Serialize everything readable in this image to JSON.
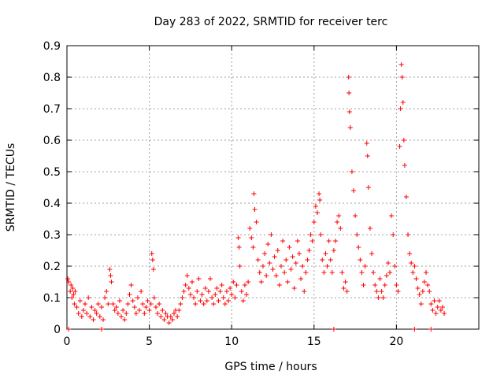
{
  "chart_data": {
    "type": "scatter",
    "title": "Day 283 of 2022, SRMTID for receiver terc",
    "xlabel": "GPS time / hours",
    "ylabel": "SRMTID / TECUs",
    "xlim": [
      0,
      25
    ],
    "ylim": [
      0,
      0.9
    ],
    "xticks": [
      0,
      5,
      10,
      15,
      20
    ],
    "yticks": [
      0,
      0.1,
      0.2,
      0.3,
      0.4,
      0.5,
      0.6,
      0.7,
      0.8,
      0.9
    ],
    "xtick_labels": [
      "0",
      "5",
      "10",
      "15",
      "20"
    ],
    "ytick_labels": [
      "0",
      "0.1",
      "0.2",
      "0.3",
      "0.4",
      "0.5",
      "0.6",
      "0.7",
      "0.8",
      "0.9"
    ],
    "grid": true,
    "marker": "+",
    "color": "#ff0000",
    "series": [
      {
        "name": "SRMTID",
        "points": [
          [
            0.05,
            0.16
          ],
          [
            0.1,
            0.15
          ],
          [
            0.2,
            0.12
          ],
          [
            0.25,
            0.14
          ],
          [
            0.3,
            0.1
          ],
          [
            0.35,
            0.13
          ],
          [
            0.4,
            0.11
          ],
          [
            0.45,
            0.08
          ],
          [
            0.5,
            0.12
          ],
          [
            0.6,
            0.07
          ],
          [
            0.7,
            0.05
          ],
          [
            0.8,
            0.09
          ],
          [
            0.9,
            0.04
          ],
          [
            1.0,
            0.06
          ],
          [
            1.1,
            0.08
          ],
          [
            1.2,
            0.05
          ],
          [
            1.3,
            0.1
          ],
          [
            1.4,
            0.04
          ],
          [
            1.5,
            0.07
          ],
          [
            1.6,
            0.03
          ],
          [
            1.7,
            0.06
          ],
          [
            1.8,
            0.05
          ],
          [
            1.9,
            0.08
          ],
          [
            2.0,
            0.04
          ],
          [
            2.1,
            0.07
          ],
          [
            2.2,
            0.03
          ],
          [
            2.3,
            0.1
          ],
          [
            2.4,
            0.12
          ],
          [
            2.5,
            0.08
          ],
          [
            2.6,
            0.19
          ],
          [
            2.65,
            0.17
          ],
          [
            2.7,
            0.15
          ],
          [
            2.8,
            0.08
          ],
          [
            2.9,
            0.06
          ],
          [
            3.0,
            0.07
          ],
          [
            3.1,
            0.05
          ],
          [
            3.2,
            0.09
          ],
          [
            3.3,
            0.04
          ],
          [
            3.4,
            0.06
          ],
          [
            3.5,
            0.03
          ],
          [
            3.6,
            0.05
          ],
          [
            3.7,
            0.08
          ],
          [
            3.8,
            0.11
          ],
          [
            3.9,
            0.14
          ],
          [
            4.0,
            0.09
          ],
          [
            4.1,
            0.07
          ],
          [
            4.2,
            0.05
          ],
          [
            4.3,
            0.1
          ],
          [
            4.4,
            0.06
          ],
          [
            4.5,
            0.12
          ],
          [
            4.6,
            0.08
          ],
          [
            4.7,
            0.05
          ],
          [
            4.8,
            0.07
          ],
          [
            4.9,
            0.09
          ],
          [
            5.0,
            0.06
          ],
          [
            5.1,
            0.08
          ],
          [
            5.15,
            0.24
          ],
          [
            5.2,
            0.22
          ],
          [
            5.25,
            0.19
          ],
          [
            5.3,
            0.1
          ],
          [
            5.4,
            0.07
          ],
          [
            5.5,
            0.05
          ],
          [
            5.6,
            0.08
          ],
          [
            5.7,
            0.04
          ],
          [
            5.8,
            0.06
          ],
          [
            5.9,
            0.03
          ],
          [
            6.0,
            0.05
          ],
          [
            6.1,
            0.04
          ],
          [
            6.2,
            0.02
          ],
          [
            6.3,
            0.04
          ],
          [
            6.4,
            0.03
          ],
          [
            6.5,
            0.05
          ],
          [
            6.6,
            0.06
          ],
          [
            6.7,
            0.04
          ],
          [
            6.8,
            0.06
          ],
          [
            6.9,
            0.08
          ],
          [
            7.0,
            0.1
          ],
          [
            7.1,
            0.12
          ],
          [
            7.2,
            0.14
          ],
          [
            7.3,
            0.17
          ],
          [
            7.4,
            0.13
          ],
          [
            7.5,
            0.11
          ],
          [
            7.6,
            0.15
          ],
          [
            7.7,
            0.1
          ],
          [
            7.8,
            0.08
          ],
          [
            7.9,
            0.12
          ],
          [
            8.0,
            0.16
          ],
          [
            8.1,
            0.09
          ],
          [
            8.2,
            0.11
          ],
          [
            8.3,
            0.08
          ],
          [
            8.4,
            0.13
          ],
          [
            8.5,
            0.09
          ],
          [
            8.6,
            0.12
          ],
          [
            8.7,
            0.16
          ],
          [
            8.8,
            0.1
          ],
          [
            8.9,
            0.08
          ],
          [
            9.0,
            0.11
          ],
          [
            9.1,
            0.13
          ],
          [
            9.2,
            0.09
          ],
          [
            9.3,
            0.12
          ],
          [
            9.4,
            0.14
          ],
          [
            9.5,
            0.1
          ],
          [
            9.6,
            0.08
          ],
          [
            9.7,
            0.12
          ],
          [
            9.8,
            0.09
          ],
          [
            9.9,
            0.13
          ],
          [
            10.0,
            0.11
          ],
          [
            10.1,
            0.15
          ],
          [
            10.2,
            0.1
          ],
          [
            10.3,
            0.14
          ],
          [
            10.4,
            0.29
          ],
          [
            10.45,
            0.26
          ],
          [
            10.5,
            0.2
          ],
          [
            10.6,
            0.12
          ],
          [
            10.7,
            0.09
          ],
          [
            10.8,
            0.14
          ],
          [
            10.9,
            0.11
          ],
          [
            11.0,
            0.15
          ],
          [
            11.1,
            0.32
          ],
          [
            11.2,
            0.29
          ],
          [
            11.3,
            0.26
          ],
          [
            11.35,
            0.43
          ],
          [
            11.4,
            0.38
          ],
          [
            11.5,
            0.34
          ],
          [
            11.6,
            0.22
          ],
          [
            11.7,
            0.18
          ],
          [
            11.8,
            0.15
          ],
          [
            11.9,
            0.2
          ],
          [
            12.0,
            0.24
          ],
          [
            12.1,
            0.17
          ],
          [
            12.2,
            0.27
          ],
          [
            12.3,
            0.21
          ],
          [
            12.4,
            0.3
          ],
          [
            12.5,
            0.19
          ],
          [
            12.6,
            0.23
          ],
          [
            12.7,
            0.17
          ],
          [
            12.8,
            0.25
          ],
          [
            12.9,
            0.14
          ],
          [
            13.0,
            0.2
          ],
          [
            13.1,
            0.28
          ],
          [
            13.2,
            0.18
          ],
          [
            13.3,
            0.22
          ],
          [
            13.4,
            0.15
          ],
          [
            13.5,
            0.26
          ],
          [
            13.6,
            0.19
          ],
          [
            13.7,
            0.23
          ],
          [
            13.8,
            0.13
          ],
          [
            13.9,
            0.21
          ],
          [
            14.0,
            0.28
          ],
          [
            14.1,
            0.24
          ],
          [
            14.2,
            0.16
          ],
          [
            14.3,
            0.2
          ],
          [
            14.4,
            0.12
          ],
          [
            14.5,
            0.18
          ],
          [
            14.6,
            0.22
          ],
          [
            14.7,
            0.25
          ],
          [
            14.8,
            0.3
          ],
          [
            14.9,
            0.28
          ],
          [
            15.0,
            0.34
          ],
          [
            15.1,
            0.39
          ],
          [
            15.2,
            0.37
          ],
          [
            15.3,
            0.43
          ],
          [
            15.35,
            0.41
          ],
          [
            15.4,
            0.3
          ],
          [
            15.5,
            0.22
          ],
          [
            15.6,
            0.18
          ],
          [
            15.7,
            0.24
          ],
          [
            15.8,
            0.2
          ],
          [
            15.9,
            0.28
          ],
          [
            16.0,
            0.22
          ],
          [
            16.1,
            0.18
          ],
          [
            16.2,
            0.25
          ],
          [
            16.3,
            0.28
          ],
          [
            16.4,
            0.34
          ],
          [
            16.5,
            0.36
          ],
          [
            16.6,
            0.32
          ],
          [
            16.7,
            0.18
          ],
          [
            16.8,
            0.13
          ],
          [
            16.9,
            0.15
          ],
          [
            17.0,
            0.12
          ],
          [
            17.1,
            0.8
          ],
          [
            17.12,
            0.75
          ],
          [
            17.15,
            0.69
          ],
          [
            17.2,
            0.64
          ],
          [
            17.3,
            0.5
          ],
          [
            17.4,
            0.44
          ],
          [
            17.5,
            0.36
          ],
          [
            17.6,
            0.3
          ],
          [
            17.7,
            0.26
          ],
          [
            17.8,
            0.22
          ],
          [
            17.9,
            0.18
          ],
          [
            18.0,
            0.14
          ],
          [
            18.1,
            0.2
          ],
          [
            18.2,
            0.59
          ],
          [
            18.25,
            0.55
          ],
          [
            18.3,
            0.45
          ],
          [
            18.4,
            0.32
          ],
          [
            18.5,
            0.24
          ],
          [
            18.6,
            0.18
          ],
          [
            18.7,
            0.14
          ],
          [
            18.8,
            0.12
          ],
          [
            18.9,
            0.1
          ],
          [
            19.0,
            0.16
          ],
          [
            19.1,
            0.12
          ],
          [
            19.2,
            0.1
          ],
          [
            19.3,
            0.14
          ],
          [
            19.4,
            0.17
          ],
          [
            19.5,
            0.21
          ],
          [
            19.6,
            0.18
          ],
          [
            19.7,
            0.36
          ],
          [
            19.8,
            0.3
          ],
          [
            19.9,
            0.2
          ],
          [
            20.0,
            0.14
          ],
          [
            20.1,
            0.12
          ],
          [
            20.2,
            0.58
          ],
          [
            20.25,
            0.7
          ],
          [
            20.3,
            0.84
          ],
          [
            20.35,
            0.8
          ],
          [
            20.4,
            0.72
          ],
          [
            20.45,
            0.6
          ],
          [
            20.5,
            0.52
          ],
          [
            20.6,
            0.42
          ],
          [
            20.7,
            0.3
          ],
          [
            20.8,
            0.24
          ],
          [
            20.9,
            0.21
          ],
          [
            21.0,
            0.18
          ],
          [
            21.1,
            0.2
          ],
          [
            21.2,
            0.16
          ],
          [
            21.3,
            0.13
          ],
          [
            21.4,
            0.11
          ],
          [
            21.5,
            0.08
          ],
          [
            21.6,
            0.12
          ],
          [
            21.7,
            0.15
          ],
          [
            21.8,
            0.18
          ],
          [
            21.9,
            0.14
          ],
          [
            22.0,
            0.12
          ],
          [
            22.1,
            0.08
          ],
          [
            22.2,
            0.06
          ],
          [
            22.3,
            0.09
          ],
          [
            22.4,
            0.05
          ],
          [
            22.5,
            0.07
          ],
          [
            22.6,
            0.09
          ],
          [
            22.7,
            0.06
          ],
          [
            22.8,
            0.07
          ],
          [
            22.9,
            0.05
          ],
          [
            0.1,
            0.0
          ],
          [
            2.1,
            0.0
          ],
          [
            16.2,
            0.0
          ],
          [
            21.1,
            0.0
          ],
          [
            22.1,
            0.0
          ]
        ]
      }
    ]
  }
}
